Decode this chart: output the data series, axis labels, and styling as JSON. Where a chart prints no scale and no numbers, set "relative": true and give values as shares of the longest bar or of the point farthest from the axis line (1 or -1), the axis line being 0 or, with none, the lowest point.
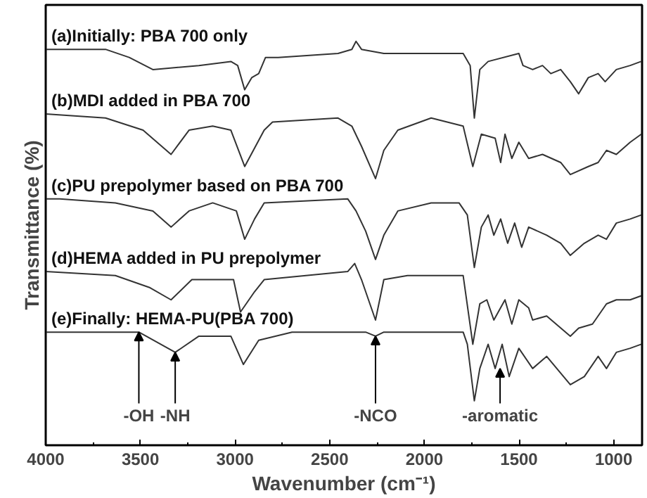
{
  "chart_data": {
    "type": "line",
    "relative": true,
    "xlabel": "Wavenumber (cm⁻¹)",
    "ylabel": "Transmittance (%)",
    "xlim": [
      4000,
      850
    ],
    "xticks": [
      4000,
      {
        "value": 3750,
        "label": null
      },
      3500,
      {
        "value": 3250,
        "label": null
      },
      3000,
      {
        "value": 2750,
        "label": null
      },
      2500,
      {
        "value": 2250,
        "label": null
      },
      2000,
      {
        "value": 1750,
        "label": null
      },
      1500,
      {
        "value": 1250,
        "label": null
      },
      1000
    ],
    "tick_labels": "x",
    "grid": false,
    "marker": "none",
    "line_style": "solid",
    "series": [
      {
        "name": "(a)Initially: PBA 700 only",
        "color": "#333333",
        "x": [
          4000,
          3926,
          3684,
          3559,
          3434,
          3191,
          3022,
          2986,
          2949,
          2912,
          2875,
          2839,
          2772,
          2456,
          2383,
          2361,
          2332,
          2214,
          1795,
          1758,
          1736,
          1707,
          1663,
          1501,
          1479,
          1428,
          1376,
          1332,
          1280,
          1229,
          1185,
          1134,
          1082,
          1045,
          986,
          913,
          855
        ],
        "values": [
          0.98,
          0.98,
          0.98,
          0.96,
          0.93,
          0.94,
          0.95,
          0.94,
          0.88,
          0.91,
          0.92,
          0.96,
          0.96,
          0.97,
          0.98,
          1.0,
          0.98,
          0.97,
          0.97,
          0.94,
          0.81,
          0.93,
          0.95,
          0.97,
          0.94,
          0.93,
          0.94,
          0.92,
          0.93,
          0.9,
          0.87,
          0.91,
          0.92,
          0.9,
          0.93,
          0.94,
          0.95
        ]
      },
      {
        "name": "(b)MDI added in PBA 700",
        "color": "#333333",
        "x": [
          4000,
          3684,
          3486,
          3338,
          3243,
          3118,
          3022,
          2949,
          2846,
          2802,
          2456,
          2383,
          2332,
          2258,
          2214,
          2140,
          1964,
          1795,
          1744,
          1699,
          1626,
          1597,
          1574,
          1538,
          1501,
          1449,
          1376,
          1280,
          1229,
          1134,
          1082,
          1038,
          986,
          913,
          854
        ],
        "values": [
          0.82,
          0.81,
          0.78,
          0.72,
          0.78,
          0.79,
          0.78,
          0.69,
          0.78,
          0.8,
          0.81,
          0.79,
          0.74,
          0.66,
          0.73,
          0.78,
          0.81,
          0.79,
          0.69,
          0.77,
          0.76,
          0.7,
          0.77,
          0.71,
          0.75,
          0.71,
          0.72,
          0.7,
          0.67,
          0.69,
          0.7,
          0.73,
          0.72,
          0.75,
          0.77
        ]
      },
      {
        "name": "(c)PU prepolymer based on PBA 700",
        "color": "#333333",
        "x": [
          4000,
          3926,
          3632,
          3434,
          3338,
          3243,
          3118,
          2993,
          2949,
          2897,
          2846,
          2405,
          2361,
          2310,
          2258,
          2214,
          2140,
          1964,
          1817,
          1773,
          1736,
          1699,
          1663,
          1633,
          1597,
          1560,
          1523,
          1486,
          1449,
          1354,
          1280,
          1229,
          1155,
          1082,
          1038,
          986,
          913,
          854
        ],
        "values": [
          0.61,
          0.61,
          0.6,
          0.58,
          0.54,
          0.58,
          0.6,
          0.58,
          0.51,
          0.56,
          0.6,
          0.61,
          0.58,
          0.53,
          0.46,
          0.52,
          0.58,
          0.6,
          0.6,
          0.57,
          0.44,
          0.54,
          0.57,
          0.52,
          0.56,
          0.5,
          0.55,
          0.49,
          0.54,
          0.52,
          0.5,
          0.47,
          0.5,
          0.52,
          0.51,
          0.55,
          0.56,
          0.57
        ]
      },
      {
        "name": "(d)HEMA added in PU prepolymer",
        "color": "#333333",
        "x": [
          4000,
          3632,
          3449,
          3338,
          3228,
          3008,
          2971,
          2897,
          2846,
          2405,
          2368,
          2332,
          2295,
          2258,
          2214,
          2089,
          1795,
          1744,
          1707,
          1670,
          1633,
          1574,
          1538,
          1501,
          1449,
          1428,
          1354,
          1229,
          1185,
          1112,
          1038,
          986,
          913,
          854
        ],
        "values": [
          0.43,
          0.42,
          0.39,
          0.36,
          0.41,
          0.41,
          0.33,
          0.38,
          0.41,
          0.43,
          0.45,
          0.41,
          0.36,
          0.31,
          0.41,
          0.42,
          0.42,
          0.25,
          0.35,
          0.36,
          0.31,
          0.36,
          0.3,
          0.36,
          0.34,
          0.31,
          0.32,
          0.27,
          0.29,
          0.3,
          0.35,
          0.36,
          0.36,
          0.37
        ]
      },
      {
        "name": "(e)Finally: HEMA-PU(PBA 700)",
        "color": "#333333",
        "x": [
          4000,
          3926,
          3508,
          3316,
          3191,
          3022,
          2956,
          2875,
          2699,
          2310,
          2258,
          2214,
          1795,
          1773,
          1736,
          1707,
          1663,
          1626,
          1589,
          1552,
          1501,
          1428,
          1354,
          1229,
          1155,
          1082,
          1038,
          986,
          913,
          854
        ],
        "values": [
          0.28,
          0.28,
          0.28,
          0.23,
          0.27,
          0.27,
          0.2,
          0.26,
          0.28,
          0.28,
          0.27,
          0.28,
          0.28,
          0.25,
          0.11,
          0.19,
          0.25,
          0.19,
          0.25,
          0.17,
          0.24,
          0.19,
          0.22,
          0.15,
          0.17,
          0.22,
          0.19,
          0.23,
          0.24,
          0.25
        ]
      }
    ],
    "annotations": [
      {
        "text": "-OH",
        "x": 3508,
        "y": 0.28
      },
      {
        "text": "-NH",
        "x": 3316,
        "y": 0.23
      },
      {
        "text": "-NCO",
        "x": 2258,
        "y": 0.27
      },
      {
        "text": "-aromatic",
        "x": 1600,
        "y": 0.19
      }
    ]
  }
}
